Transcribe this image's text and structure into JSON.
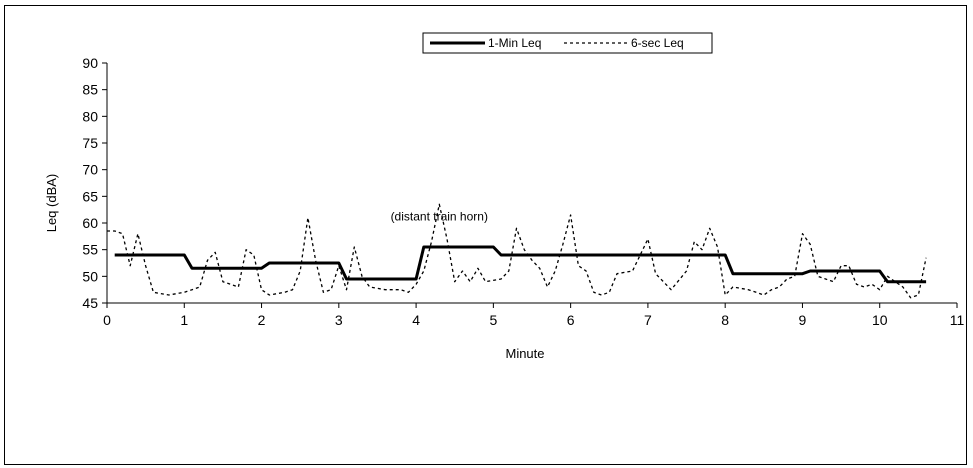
{
  "chart_data": {
    "type": "line",
    "xlabel": "Minute",
    "ylabel": "Leq (dBA)",
    "xlim": [
      0,
      11
    ],
    "ylim": [
      45,
      90
    ],
    "x_ticks": [
      "0",
      "1",
      "2",
      "3",
      "4",
      "5",
      "6",
      "7",
      "8",
      "9",
      "10",
      "11"
    ],
    "y_ticks": [
      "45",
      "50",
      "55",
      "60",
      "65",
      "70",
      "75",
      "80",
      "85",
      "90"
    ],
    "grid": false,
    "legend_position": "top-center",
    "annotations": [
      {
        "text": "(distant train horn)",
        "x": 4.3,
        "y": 60.5
      }
    ],
    "series": [
      {
        "name": "1-Min Leq",
        "style": "solid",
        "color": "#000000",
        "points": [
          [
            0.1,
            54
          ],
          [
            1.0,
            54
          ],
          [
            1.1,
            51.5
          ],
          [
            2.0,
            51.5
          ],
          [
            2.1,
            52.5
          ],
          [
            3.0,
            52.5
          ],
          [
            3.1,
            49.5
          ],
          [
            4.0,
            49.5
          ],
          [
            4.1,
            55.5
          ],
          [
            5.0,
            55.5
          ],
          [
            5.1,
            54
          ],
          [
            8.0,
            54
          ],
          [
            8.1,
            50.5
          ],
          [
            9.0,
            50.5
          ],
          [
            9.1,
            51
          ],
          [
            10.0,
            51
          ],
          [
            10.1,
            49
          ],
          [
            10.6,
            49
          ]
        ]
      },
      {
        "name": "6-sec Leq",
        "style": "dotted",
        "color": "#000000",
        "points": [
          [
            0,
            58.5
          ],
          [
            0.1,
            58.5
          ],
          [
            0.2,
            58
          ],
          [
            0.3,
            52
          ],
          [
            0.4,
            58
          ],
          [
            0.5,
            52
          ],
          [
            0.6,
            47
          ],
          [
            0.8,
            46.5
          ],
          [
            1.0,
            47
          ],
          [
            1.1,
            47.5
          ],
          [
            1.2,
            48
          ],
          [
            1.3,
            53
          ],
          [
            1.4,
            54.5
          ],
          [
            1.5,
            49
          ],
          [
            1.6,
            48.5
          ],
          [
            1.7,
            48
          ],
          [
            1.8,
            55
          ],
          [
            1.9,
            54
          ],
          [
            2.0,
            47.5
          ],
          [
            2.1,
            46.5
          ],
          [
            2.3,
            47
          ],
          [
            2.4,
            47.5
          ],
          [
            2.5,
            51
          ],
          [
            2.6,
            61
          ],
          [
            2.7,
            53
          ],
          [
            2.8,
            47
          ],
          [
            2.9,
            47.5
          ],
          [
            3.0,
            52
          ],
          [
            3.1,
            47.5
          ],
          [
            3.2,
            55.5
          ],
          [
            3.3,
            50
          ],
          [
            3.4,
            48
          ],
          [
            3.6,
            47.5
          ],
          [
            3.8,
            47.5
          ],
          [
            3.9,
            47
          ],
          [
            4.0,
            48.5
          ],
          [
            4.1,
            51
          ],
          [
            4.2,
            56.5
          ],
          [
            4.3,
            63.5
          ],
          [
            4.4,
            57
          ],
          [
            4.5,
            49
          ],
          [
            4.6,
            51
          ],
          [
            4.7,
            49
          ],
          [
            4.8,
            51.5
          ],
          [
            4.9,
            49
          ],
          [
            5.1,
            49.5
          ],
          [
            5.2,
            51
          ],
          [
            5.3,
            59
          ],
          [
            5.4,
            55
          ],
          [
            5.5,
            53
          ],
          [
            5.6,
            51.5
          ],
          [
            5.7,
            48
          ],
          [
            5.8,
            51
          ],
          [
            5.9,
            56
          ],
          [
            6.0,
            61.5
          ],
          [
            6.1,
            52
          ],
          [
            6.2,
            51
          ],
          [
            6.3,
            47
          ],
          [
            6.4,
            46.5
          ],
          [
            6.5,
            47
          ],
          [
            6.6,
            50.5
          ],
          [
            6.8,
            51
          ],
          [
            7.0,
            57
          ],
          [
            7.1,
            50.5
          ],
          [
            7.2,
            49
          ],
          [
            7.3,
            47.5
          ],
          [
            7.5,
            51
          ],
          [
            7.6,
            56.5
          ],
          [
            7.7,
            55
          ],
          [
            7.8,
            59
          ],
          [
            7.9,
            55.5
          ],
          [
            8.0,
            46.5
          ],
          [
            8.1,
            48
          ],
          [
            8.3,
            47.5
          ],
          [
            8.4,
            47
          ],
          [
            8.5,
            46.5
          ],
          [
            8.6,
            47.5
          ],
          [
            8.7,
            48
          ],
          [
            8.8,
            49.5
          ],
          [
            8.9,
            50
          ],
          [
            9.0,
            58
          ],
          [
            9.1,
            56
          ],
          [
            9.2,
            50
          ],
          [
            9.3,
            49.5
          ],
          [
            9.4,
            49
          ],
          [
            9.5,
            52
          ],
          [
            9.6,
            52
          ],
          [
            9.7,
            48.5
          ],
          [
            9.8,
            48
          ],
          [
            9.9,
            48.5
          ],
          [
            10.0,
            47.5
          ],
          [
            10.1,
            50
          ],
          [
            10.2,
            49
          ],
          [
            10.3,
            48
          ],
          [
            10.4,
            46
          ],
          [
            10.5,
            46.5
          ],
          [
            10.6,
            53.5
          ]
        ]
      }
    ]
  }
}
